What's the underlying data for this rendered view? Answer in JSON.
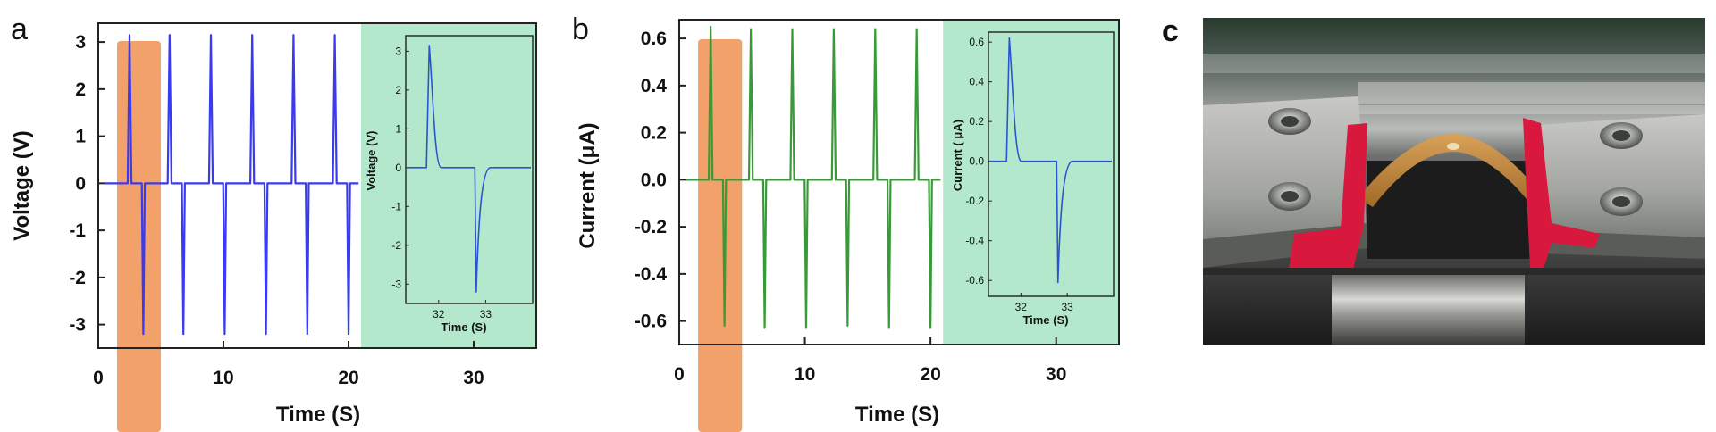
{
  "panels": {
    "a": "a",
    "b": "b",
    "c": "c"
  },
  "colors": {
    "highlight": "#F2A16A",
    "inset_bg": "#B3E8CC",
    "voltage_line": "#3A3AF0",
    "current_line": "#3A9A3A",
    "inset_line": "#2B55D0"
  },
  "chart_data": [
    {
      "type": "line",
      "panel": "a",
      "xlabel": "Time (S)",
      "ylabel": "Voltage (V)",
      "xlim": [
        0,
        35
      ],
      "ylim": [
        -3.5,
        3.4
      ],
      "xticks": [
        "0",
        "10",
        "20",
        "30"
      ],
      "yticks": [
        "3",
        "2",
        "1",
        "0",
        "-1",
        "-2",
        "-3"
      ],
      "yticks_values": [
        3,
        2,
        1,
        0,
        -1,
        -2,
        -3
      ],
      "xticks_values": [
        0,
        10,
        20,
        30
      ],
      "grid": false,
      "baseline": 0,
      "series_color": "#3A3AF0",
      "highlight_x": [
        1.5,
        5.0
      ],
      "inset_x": [
        21.0,
        35
      ],
      "peaks": [
        {
          "x_pos": 2.5,
          "y_pos": 3.15,
          "x_neg": 3.6,
          "y_neg": -3.2
        },
        {
          "x_pos": 5.7,
          "y_pos": 3.15,
          "x_neg": 6.8,
          "y_neg": -3.2
        },
        {
          "x_pos": 9.0,
          "y_pos": 3.15,
          "x_neg": 10.1,
          "y_neg": -3.2
        },
        {
          "x_pos": 12.3,
          "y_pos": 3.15,
          "x_neg": 13.4,
          "y_neg": -3.2
        },
        {
          "x_pos": 15.6,
          "y_pos": 3.15,
          "x_neg": 16.7,
          "y_neg": -3.2
        },
        {
          "x_pos": 18.9,
          "y_pos": 3.15,
          "x_neg": 20.0,
          "y_neg": -3.2
        }
      ],
      "inset": {
        "xlabel": "Time (S)",
        "ylabel": "Voltage (V)",
        "xlim": [
          31.3,
          34.0
        ],
        "ylim": [
          -3.5,
          3.4
        ],
        "xticks": [
          "32",
          "33"
        ],
        "xticks_values": [
          32,
          33
        ],
        "yticks": [
          "3",
          "2",
          "1",
          "0",
          "-1",
          "-2",
          "-3"
        ],
        "yticks_values": [
          3,
          2,
          1,
          0,
          -1,
          -2,
          -3
        ],
        "peak_pos": {
          "x": 31.8,
          "y": 3.15
        },
        "peak_neg": {
          "x": 32.8,
          "y": -3.2
        }
      }
    },
    {
      "type": "line",
      "panel": "b",
      "xlabel": "Time (S)",
      "ylabel": "Current (μA)",
      "xlim": [
        0,
        35
      ],
      "ylim": [
        -0.7,
        0.68
      ],
      "xticks": [
        "0",
        "10",
        "20",
        "30"
      ],
      "xticks_values": [
        0,
        10,
        20,
        30
      ],
      "yticks": [
        "0.6",
        "0.4",
        "0.2",
        "0.0",
        "-0.2",
        "-0.4",
        "-0.6"
      ],
      "yticks_values": [
        0.6,
        0.4,
        0.2,
        0.0,
        -0.2,
        -0.4,
        -0.6
      ],
      "grid": false,
      "baseline": 0,
      "series_color": "#3A9A3A",
      "highlight_x": [
        1.5,
        5.0
      ],
      "inset_x": [
        21.0,
        35
      ],
      "peaks": [
        {
          "x_pos": 2.5,
          "y_pos": 0.65,
          "x_neg": 3.6,
          "y_neg": -0.62
        },
        {
          "x_pos": 5.7,
          "y_pos": 0.64,
          "x_neg": 6.8,
          "y_neg": -0.63
        },
        {
          "x_pos": 9.0,
          "y_pos": 0.64,
          "x_neg": 10.1,
          "y_neg": -0.63
        },
        {
          "x_pos": 12.3,
          "y_pos": 0.64,
          "x_neg": 13.4,
          "y_neg": -0.62
        },
        {
          "x_pos": 15.6,
          "y_pos": 0.64,
          "x_neg": 16.7,
          "y_neg": -0.63
        },
        {
          "x_pos": 18.9,
          "y_pos": 0.64,
          "x_neg": 20.0,
          "y_neg": -0.63
        }
      ],
      "inset": {
        "xlabel": "Time (S)",
        "ylabel": "Current ( μA)",
        "xlim": [
          31.3,
          34.0
        ],
        "ylim": [
          -0.68,
          0.65
        ],
        "xticks": [
          "32",
          "33"
        ],
        "xticks_values": [
          32,
          33
        ],
        "yticks": [
          "0.6",
          "0.4",
          "0.2",
          "0.0",
          "-0.2",
          "-0.4",
          "-0.6"
        ],
        "yticks_values": [
          0.6,
          0.4,
          0.2,
          0.0,
          -0.2,
          -0.4,
          -0.6
        ],
        "peak_pos": {
          "x": 31.75,
          "y": 0.62
        },
        "peak_neg": {
          "x": 32.8,
          "y": -0.61
        }
      }
    }
  ]
}
